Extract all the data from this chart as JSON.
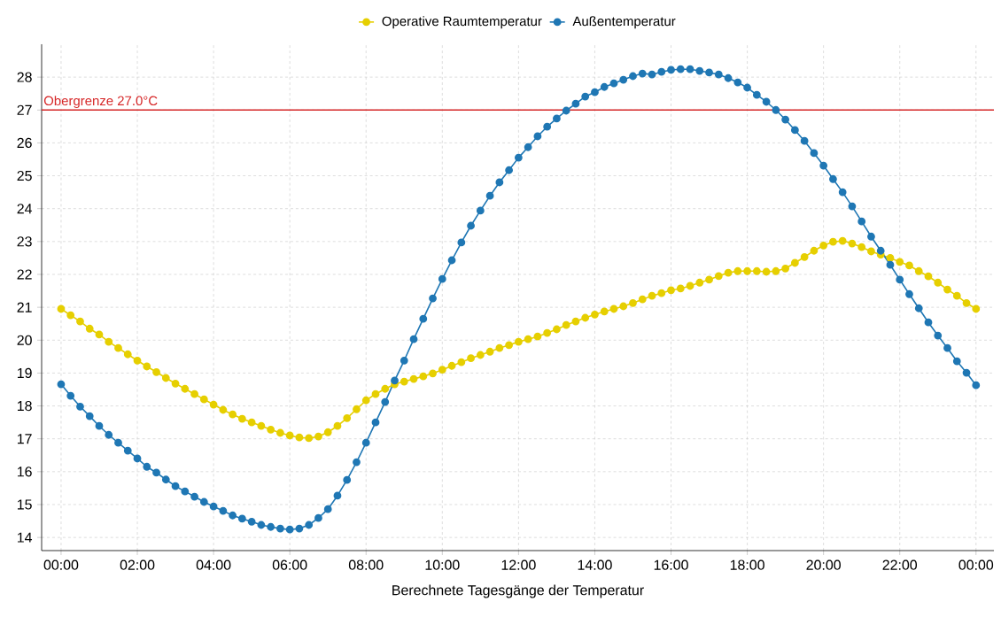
{
  "chart_data": {
    "type": "line",
    "xlabel": "Berechnete Tagesgänge der Temperatur",
    "x": [
      0,
      0.25,
      0.5,
      0.75,
      1,
      1.25,
      1.5,
      1.75,
      2,
      2.25,
      2.5,
      2.75,
      3,
      3.25,
      3.5,
      3.75,
      4,
      4.25,
      4.5,
      4.75,
      5,
      5.25,
      5.5,
      5.75,
      6,
      6.25,
      6.5,
      6.75,
      7,
      7.25,
      7.5,
      7.75,
      8,
      8.25,
      8.5,
      8.75,
      9,
      9.25,
      9.5,
      9.75,
      10,
      10.25,
      10.5,
      10.75,
      11,
      11.25,
      11.5,
      11.75,
      12,
      12.25,
      12.5,
      12.75,
      13,
      13.25,
      13.5,
      13.75,
      14,
      14.25,
      14.5,
      14.75,
      15,
      15.25,
      15.5,
      15.75,
      16,
      16.25,
      16.5,
      16.75,
      17,
      17.25,
      17.5,
      17.75,
      18,
      18.25,
      18.5,
      18.75,
      19,
      19.25,
      19.5,
      19.75,
      20,
      20.25,
      20.5,
      20.75,
      21,
      21.25,
      21.5,
      21.75,
      22,
      22.25,
      22.5,
      22.75,
      23,
      23.25,
      23.5,
      23.75,
      24
    ],
    "series": [
      {
        "name": "Operative Raumtemperatur",
        "color": "#e6cf00",
        "values": [
          20.95,
          20.76,
          20.57,
          20.35,
          20.17,
          19.95,
          19.76,
          19.57,
          19.38,
          19.2,
          19.03,
          18.85,
          18.68,
          18.52,
          18.36,
          18.2,
          18.04,
          17.88,
          17.74,
          17.61,
          17.5,
          17.39,
          17.28,
          17.18,
          17.1,
          17.04,
          17.02,
          17.07,
          17.2,
          17.39,
          17.63,
          17.9,
          18.17,
          18.36,
          18.52,
          18.66,
          18.74,
          18.82,
          18.9,
          18.99,
          19.1,
          19.22,
          19.33,
          19.45,
          19.55,
          19.65,
          19.76,
          19.85,
          19.95,
          20.03,
          20.11,
          20.22,
          20.33,
          20.46,
          20.57,
          20.68,
          20.78,
          20.87,
          20.95,
          21.03,
          21.13,
          21.24,
          21.35,
          21.43,
          21.52,
          21.57,
          21.65,
          21.75,
          21.84,
          21.95,
          22.05,
          22.1,
          22.1,
          22.1,
          22.08,
          22.1,
          22.18,
          22.35,
          22.53,
          22.72,
          22.88,
          22.99,
          23.02,
          22.94,
          22.83,
          22.7,
          22.6,
          22.5,
          22.38,
          22.27,
          22.1,
          21.94,
          21.75,
          21.54,
          21.35,
          21.13,
          20.95
        ]
      },
      {
        "name": "Außentemperatur",
        "color": "#1f77b4",
        "values": [
          18.66,
          18.31,
          17.98,
          17.69,
          17.39,
          17.12,
          16.88,
          16.64,
          16.4,
          16.15,
          15.97,
          15.76,
          15.56,
          15.4,
          15.24,
          15.08,
          14.94,
          14.81,
          14.67,
          14.57,
          14.48,
          14.38,
          14.32,
          14.27,
          14.24,
          14.27,
          14.38,
          14.59,
          14.86,
          15.27,
          15.75,
          16.29,
          16.88,
          17.5,
          18.12,
          18.77,
          19.38,
          20.03,
          20.65,
          21.27,
          21.86,
          22.43,
          22.97,
          23.48,
          23.94,
          24.39,
          24.8,
          25.17,
          25.55,
          25.87,
          26.2,
          26.49,
          26.74,
          26.98,
          27.19,
          27.41,
          27.54,
          27.7,
          27.81,
          27.92,
          28.03,
          28.11,
          28.08,
          28.16,
          28.22,
          28.24,
          28.24,
          28.19,
          28.14,
          28.08,
          27.97,
          27.84,
          27.68,
          27.46,
          27.25,
          27.0,
          26.71,
          26.39,
          26.06,
          25.69,
          25.31,
          24.9,
          24.5,
          24.07,
          23.61,
          23.15,
          22.72,
          22.29,
          21.84,
          21.4,
          20.97,
          20.54,
          20.14,
          19.76,
          19.36,
          19.01,
          18.63
        ]
      }
    ],
    "xlim": [
      -0.51,
      24.47
    ],
    "ylim": [
      13.6,
      29.0
    ],
    "xticks": [
      {
        "value": 0,
        "label": "00:00"
      },
      {
        "value": 2,
        "label": "02:00"
      },
      {
        "value": 4,
        "label": "04:00"
      },
      {
        "value": 6,
        "label": "06:00"
      },
      {
        "value": 8,
        "label": "08:00"
      },
      {
        "value": 10,
        "label": "10:00"
      },
      {
        "value": 12,
        "label": "12:00"
      },
      {
        "value": 14,
        "label": "14:00"
      },
      {
        "value": 16,
        "label": "16:00"
      },
      {
        "value": 18,
        "label": "18:00"
      },
      {
        "value": 20,
        "label": "20:00"
      },
      {
        "value": 22,
        "label": "22:00"
      },
      {
        "value": 24,
        "label": "00:00"
      }
    ],
    "yticks": [
      14,
      15,
      16,
      17,
      18,
      19,
      20,
      21,
      22,
      23,
      24,
      25,
      26,
      27,
      28
    ],
    "ref_lines": [
      {
        "axis": "y",
        "value": 27,
        "label": "Obergrenze 27.0°C",
        "color": "#d62728"
      }
    ],
    "grid": true,
    "legend": "top",
    "marker": "circle"
  }
}
